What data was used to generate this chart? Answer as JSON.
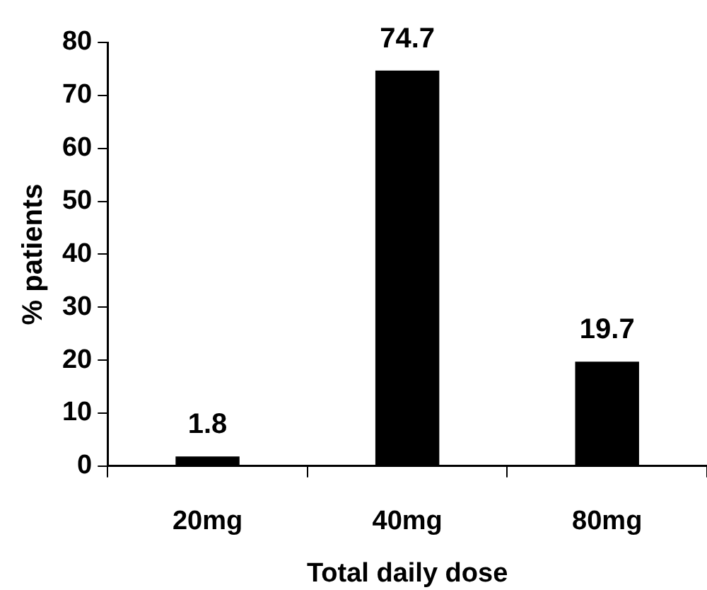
{
  "chart_data": {
    "type": "bar",
    "xlabel": "Total daily dose",
    "ylabel": "% patients",
    "categories": [
      "20mg",
      "40mg",
      "80mg"
    ],
    "values": [
      1.8,
      74.7,
      19.7
    ],
    "color": "#000000",
    "ylim": [
      0,
      80
    ],
    "yticks": [
      0,
      10,
      20,
      30,
      40,
      50,
      60,
      70,
      80
    ],
    "data_labels": true,
    "grid": false,
    "legend": false
  }
}
